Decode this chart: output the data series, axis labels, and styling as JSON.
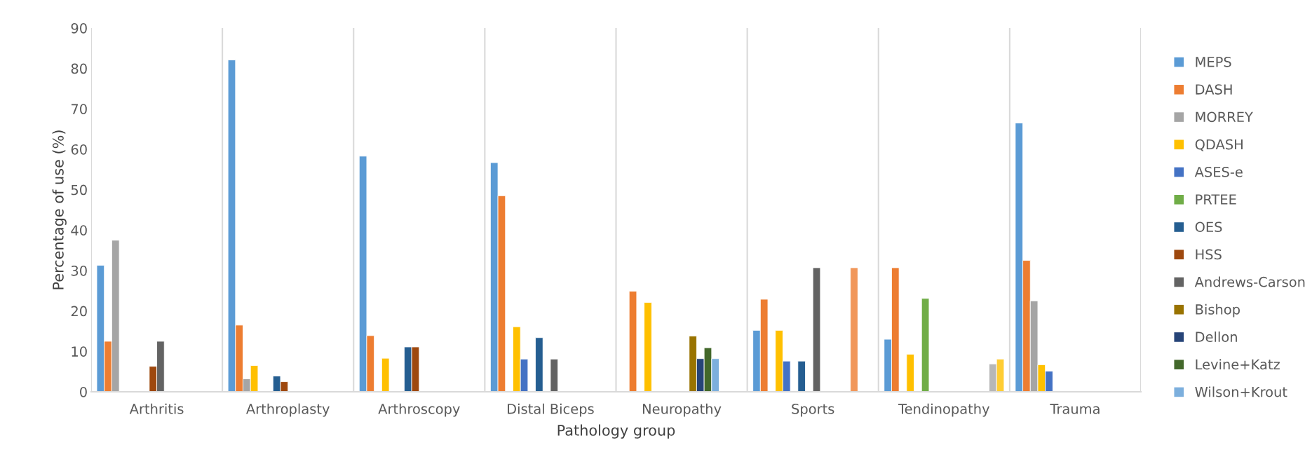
{
  "chart_data": {
    "type": "bar",
    "xlabel": "Pathology group",
    "ylabel": "Percentage of use (%)",
    "categories": [
      "Arthritis",
      "Arthroplasty",
      "Arthroscopy",
      "Distal Biceps",
      "Neuropathy",
      "Sports",
      "Tendinopathy",
      "Trauma"
    ],
    "ylim": [
      0,
      90
    ],
    "yticks": [
      0,
      10,
      20,
      30,
      40,
      50,
      60,
      70,
      80,
      90
    ],
    "grid": "x",
    "legend": "right",
    "series": [
      {
        "name": "MEPS",
        "color": "#5b9bd5",
        "values": [
          31.3,
          82.1,
          58.3,
          56.7,
          null,
          15.2,
          13.0,
          66.5
        ]
      },
      {
        "name": "DASH",
        "color": "#ed7d31",
        "values": [
          12.5,
          16.5,
          13.9,
          48.5,
          24.9,
          22.9,
          30.7,
          32.5
        ]
      },
      {
        "name": "MORREY",
        "color": "#a5a5a5",
        "values": [
          37.5,
          3.2,
          null,
          null,
          null,
          null,
          null,
          22.5
        ]
      },
      {
        "name": "QDASH",
        "color": "#ffc000",
        "values": [
          null,
          6.5,
          8.3,
          16.1,
          22.1,
          15.2,
          9.3,
          6.7
        ]
      },
      {
        "name": "ASES-e",
        "color": "#4472c4",
        "values": [
          null,
          null,
          null,
          8.1,
          null,
          7.6,
          null,
          5.1
        ]
      },
      {
        "name": "PRTEE",
        "color": "#70ad47",
        "values": [
          null,
          null,
          null,
          null,
          null,
          null,
          23.1,
          null
        ]
      },
      {
        "name": "OES",
        "color": "#255e91",
        "values": [
          null,
          3.9,
          11.1,
          13.4,
          null,
          7.6,
          null,
          null
        ]
      },
      {
        "name": "HSS",
        "color": "#9e480e",
        "values": [
          6.3,
          2.5,
          11.1,
          null,
          null,
          null,
          null,
          null
        ]
      },
      {
        "name": "Andrews-Carson",
        "color": "#636363",
        "values": [
          12.5,
          null,
          null,
          8.1,
          null,
          30.7,
          null,
          null
        ]
      },
      {
        "name": "Bishop",
        "color": "#997300",
        "values": [
          null,
          null,
          null,
          null,
          13.8,
          null,
          null,
          null
        ]
      },
      {
        "name": "Dellon",
        "color": "#264478",
        "values": [
          null,
          null,
          null,
          null,
          8.2,
          null,
          null,
          null
        ]
      },
      {
        "name": "Levine+Katz",
        "color": "#43682b",
        "values": [
          null,
          null,
          null,
          null,
          10.9,
          null,
          null,
          null
        ]
      },
      {
        "name": "Wilson+Krout",
        "color": "#7cafdd",
        "values": [
          null,
          null,
          null,
          null,
          8.2,
          null,
          null,
          null
        ]
      },
      {
        "color": "#f1975a",
        "values": [
          null,
          null,
          null,
          null,
          null,
          30.7,
          null,
          null
        ]
      },
      {
        "color": "#b7b7b7",
        "values": [
          null,
          null,
          null,
          null,
          null,
          null,
          6.9,
          null
        ]
      },
      {
        "color": "#ffcd33",
        "values": [
          null,
          null,
          null,
          null,
          null,
          null,
          8.1,
          null
        ]
      }
    ]
  }
}
